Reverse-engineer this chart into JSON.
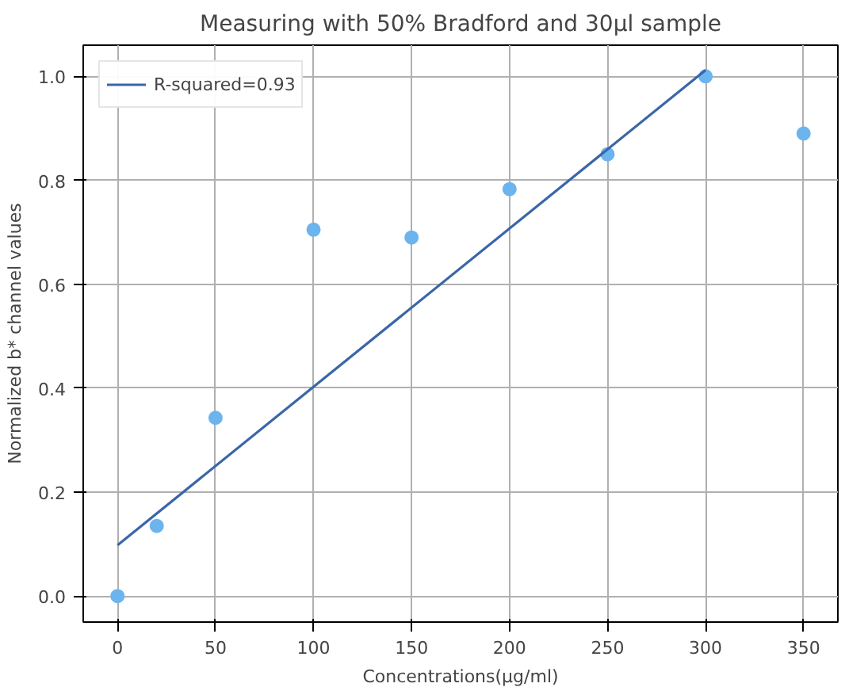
{
  "chart_data": {
    "type": "scatter",
    "title": "Measuring with 50% Bradford and 30µl sample",
    "xlabel": "Concentrations(µg/ml)",
    "ylabel": "Normalized b* channel values",
    "series": [
      {
        "marker": "circle",
        "color": "#6cb4ee",
        "x": [
          0,
          20,
          50,
          100,
          150,
          200,
          250,
          300,
          350
        ],
        "values": [
          0.0,
          0.135,
          0.343,
          0.705,
          0.69,
          0.783,
          0.85,
          1.0,
          0.89
        ]
      },
      {
        "type": "line",
        "name": "R-squared=0.93",
        "color": "#3a66a8",
        "x": [
          0,
          300
        ],
        "values": [
          0.098,
          1.012
        ]
      }
    ],
    "xlim": [
      -17.5,
      367.5
    ],
    "ylim": [
      -0.05,
      1.06
    ],
    "xticks": [
      0,
      50,
      100,
      150,
      200,
      250,
      300,
      350
    ],
    "yticks": [
      {
        "value": 0,
        "label": "0.0"
      },
      {
        "value": 0.2,
        "label": "0.2"
      },
      {
        "value": 0.4,
        "label": "0.4"
      },
      {
        "value": 0.6,
        "label": "0.6"
      },
      {
        "value": 0.8,
        "label": "0.8"
      },
      {
        "value": 1.0,
        "label": "1.0"
      }
    ],
    "grid": true,
    "legend": "top left"
  }
}
